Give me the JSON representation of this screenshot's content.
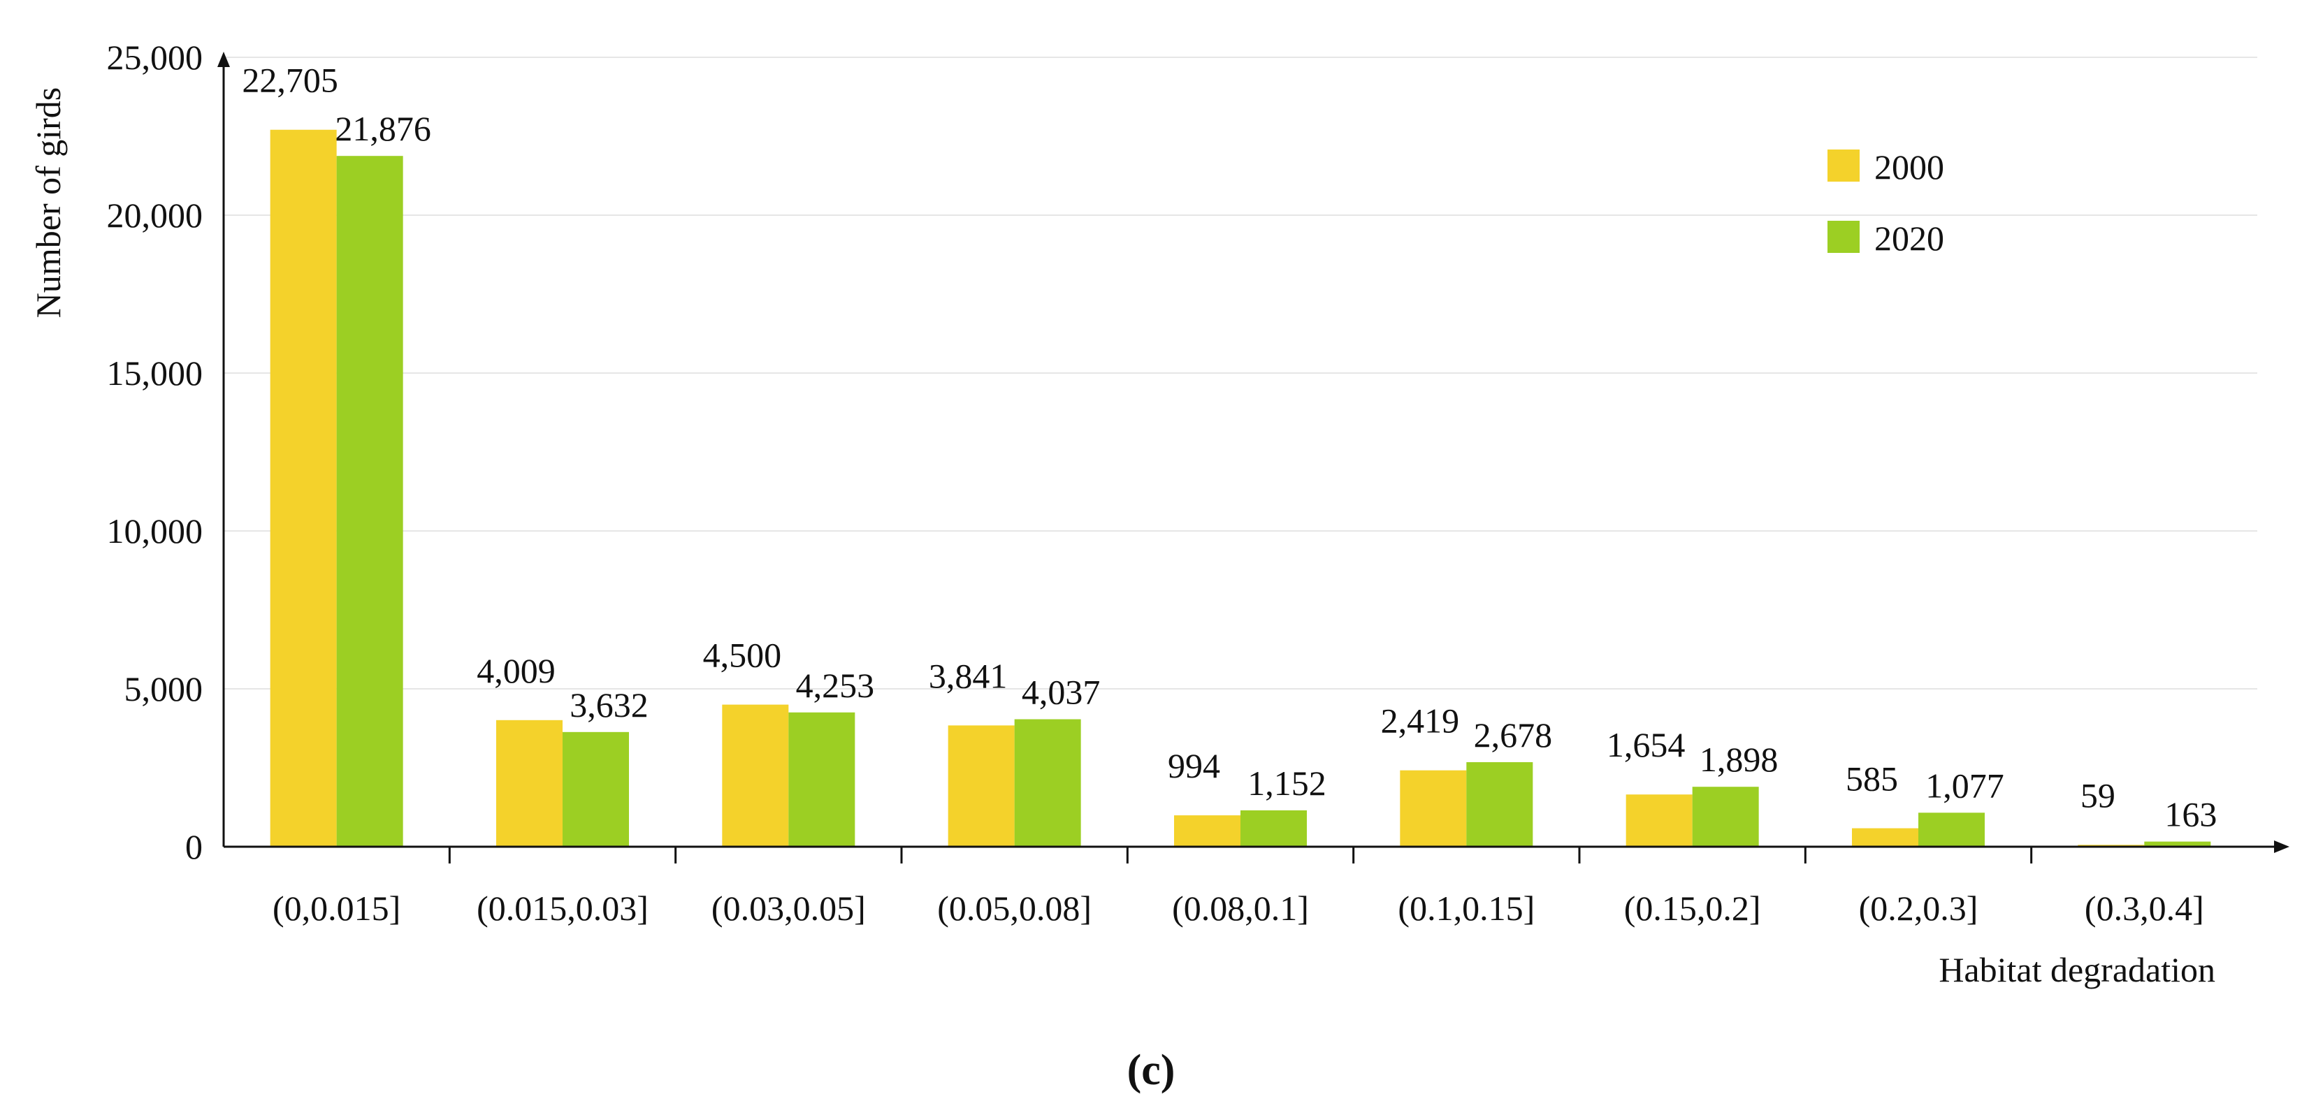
{
  "chart_data": {
    "type": "bar",
    "title": "",
    "xlabel": "Habitat degradation",
    "ylabel": "Number of girds",
    "ylim": [
      0,
      25000
    ],
    "yticks": [
      0,
      5000,
      10000,
      15000,
      20000,
      25000
    ],
    "ytick_labels": [
      "0",
      "5,000",
      "10,000",
      "15,000",
      "20,000",
      "25,000"
    ],
    "grid": true,
    "legend_position": "top-right",
    "categories": [
      "(0,0.015]",
      "(0.015,0.03]",
      "(0.03,0.05]",
      "(0.05,0.08]",
      "(0.08,0.1]",
      "(0.1,0.15]",
      "(0.15,0.2]",
      "(0.2,0.3]",
      "(0.3,0.4]"
    ],
    "series": [
      {
        "name": "2000",
        "color": "#f4d22b",
        "values": [
          22705,
          4009,
          4500,
          3841,
          994,
          2419,
          1654,
          585,
          59
        ],
        "labels": [
          "22,705",
          "4,009",
          "4,500",
          "3,841",
          "994",
          "2,419",
          "1,654",
          "585",
          "59"
        ]
      },
      {
        "name": "2020",
        "color": "#9ccf23",
        "values": [
          21876,
          3632,
          4253,
          4037,
          1152,
          2678,
          1898,
          1077,
          163
        ],
        "labels": [
          "21,876",
          "3,632",
          "4,253",
          "4,037",
          "1,152",
          "2,678",
          "1,898",
          "1,077",
          "163"
        ]
      }
    ]
  },
  "caption": "(c)"
}
